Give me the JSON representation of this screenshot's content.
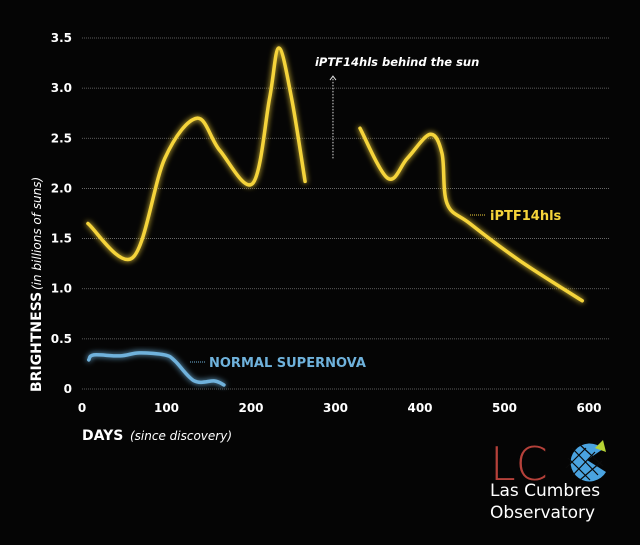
{
  "chart_data": {
    "type": "line",
    "xlabel": "DAYS",
    "xlabel_note": "(since discovery)",
    "ylabel": "BRIGHTNESS",
    "ylabel_note": "(in billions of suns)",
    "xlim": [
      0,
      600
    ],
    "ylim": [
      0,
      3.5
    ],
    "x_ticks": [
      "0",
      "100",
      "200",
      "300",
      "400",
      "500",
      "600"
    ],
    "y_ticks": [
      "0",
      "0.5",
      "1.0",
      "1.5",
      "2.0",
      "2.5",
      "3.0",
      "3.5"
    ],
    "grid": true,
    "series": [
      {
        "name": "iPTF14hls",
        "color": "#f5d43a",
        "segments": [
          [
            [
              7,
              1.65
            ],
            [
              60,
              1.31
            ],
            [
              98,
              2.3
            ],
            [
              136,
              2.7
            ],
            [
              163,
              2.38
            ],
            [
              202,
              2.05
            ],
            [
              222,
              2.9
            ],
            [
              233,
              3.4
            ],
            [
              248,
              2.9
            ],
            [
              264,
              2.07
            ]
          ],
          [
            [
              329,
              2.6
            ],
            [
              362,
              2.1
            ],
            [
              385,
              2.3
            ],
            [
              412,
              2.54
            ],
            [
              426,
              2.35
            ],
            [
              432,
              1.85
            ],
            [
              459,
              1.65
            ],
            [
              518,
              1.28
            ],
            [
              592,
              0.88
            ]
          ]
        ]
      },
      {
        "name": "NORMAL SUPERNOVA",
        "color": "#6fb2dc",
        "segments": [
          [
            [
              8,
              0.29
            ],
            [
              14,
              0.34
            ],
            [
              45,
              0.33
            ],
            [
              68,
              0.36
            ],
            [
              98,
              0.34
            ],
            [
              110,
              0.28
            ],
            [
              133,
              0.08
            ],
            [
              157,
              0.08
            ],
            [
              168,
              0.04
            ]
          ]
        ]
      }
    ],
    "annotations": [
      {
        "text": "iPTF14hls behind the sun",
        "x": 297,
        "y_from": 2.3,
        "y_to": 3.12
      }
    ]
  },
  "logo": {
    "letters": "LC",
    "line1": "Las Cumbres",
    "line2": "Observatory",
    "colors": {
      "letters": "#b5413a",
      "globe": "#4aa3e0",
      "triangle": "#b6d334"
    }
  }
}
